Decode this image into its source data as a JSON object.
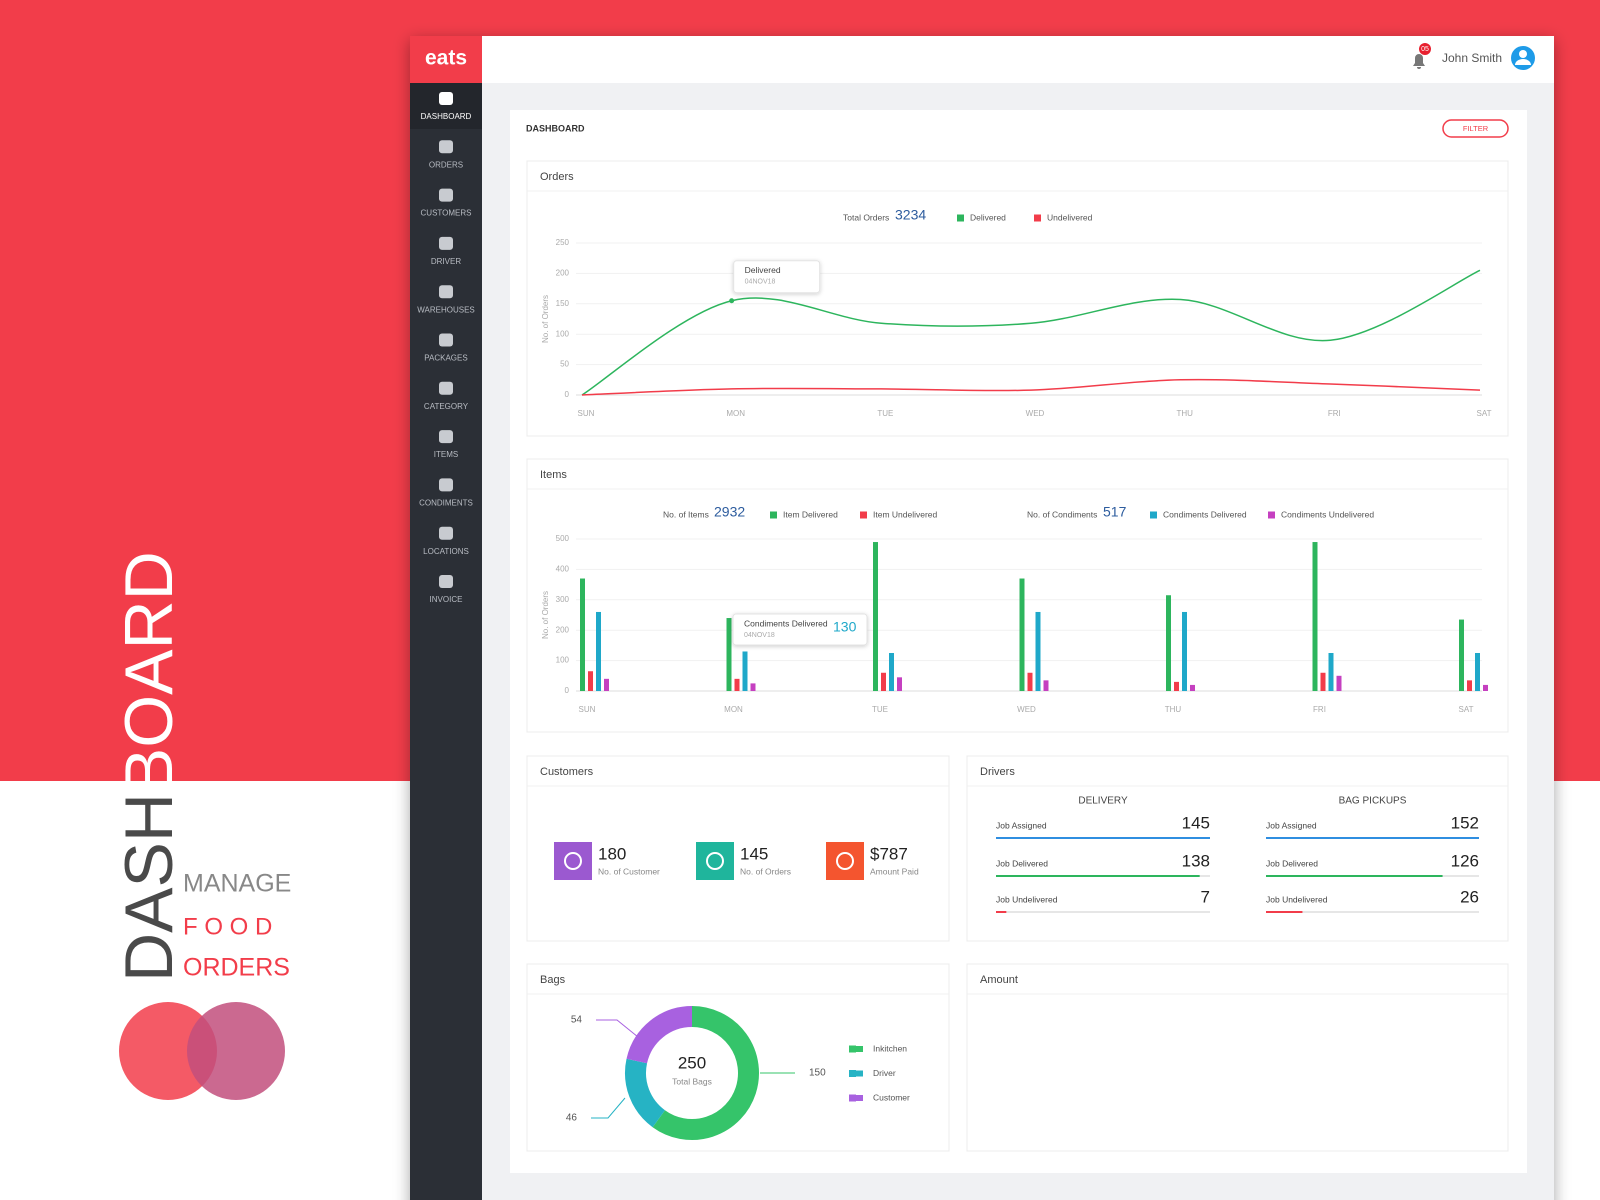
{
  "promo": {
    "title_a": "DASH",
    "title_b": "BOARD",
    "line1": "MANAGE",
    "line2": "F O O D",
    "line3": "ORDERS"
  },
  "app": {
    "logo": "eats",
    "notifications": "05",
    "user": "John Smith"
  },
  "nav": [
    "DASHBOARD",
    "ORDERS",
    "CUSTOMERS",
    "DRIVER",
    "WAREHOUSES",
    "PACKAGES",
    "CATEGORY",
    "ITEMS",
    "CONDIMENTS",
    "LOCATIONS",
    "INVOICE"
  ],
  "page": {
    "title": "DASHBOARD",
    "filter": "FILTER"
  },
  "orders": {
    "type": "line",
    "title": "Orders",
    "total_label": "Total Orders",
    "total": 3234,
    "y_label": "No. of Orders",
    "categories": [
      "SUN",
      "MON",
      "TUE",
      "WED",
      "THU",
      "FRI",
      "SAT"
    ],
    "ylim": [
      0,
      250
    ],
    "yticks": [
      0,
      50,
      100,
      150,
      200,
      250
    ],
    "grid": true,
    "series": [
      {
        "name": "Delivered",
        "color": "#2db55d",
        "values": [
          0,
          155,
          118,
          118,
          157,
          90,
          205
        ]
      },
      {
        "name": "Undelivered",
        "color": "#f23c4a",
        "values": [
          0,
          10,
          10,
          8,
          25,
          18,
          8
        ]
      }
    ],
    "tooltip": {
      "date": "04NOV18"
    }
  },
  "items": {
    "type": "bar",
    "title": "Items",
    "items_label": "No. of Items",
    "items_total": 2932,
    "condiments_label": "No. of Condiments",
    "condiments_total": 517,
    "y_label": "No. of Orders",
    "categories": [
      "SUN",
      "MON",
      "TUE",
      "WED",
      "THU",
      "FRI",
      "SAT"
    ],
    "ylim": [
      0,
      500
    ],
    "yticks": [
      0,
      100,
      200,
      300,
      400,
      500
    ],
    "grid": true,
    "series": [
      {
        "name": "Item Delivered",
        "color": "#2db55d",
        "values": [
          370,
          240,
          490,
          370,
          315,
          490,
          235
        ]
      },
      {
        "name": "Item Undelivered",
        "color": "#f23c4a",
        "values": [
          65,
          40,
          60,
          60,
          30,
          60,
          35
        ]
      },
      {
        "name": "Condiments Delivered",
        "color": "#1fa8c9",
        "values": [
          260,
          130,
          125,
          260,
          260,
          125,
          125
        ]
      },
      {
        "name": "Condiments Undelivered",
        "color": "#c540c0",
        "values": [
          40,
          25,
          45,
          35,
          20,
          50,
          20
        ]
      }
    ],
    "tooltip": {
      "date": "04NOV18"
    }
  },
  "customers": {
    "title": "Customers",
    "stats": [
      {
        "value": "180",
        "label": "No. of Customer",
        "color": "#9b59d0"
      },
      {
        "value": "145",
        "label": "No. of Orders",
        "color": "#1fb59c"
      },
      {
        "value": "$787",
        "label": "Amount Paid",
        "color": "#f4552f"
      }
    ]
  },
  "drivers": {
    "title": "Drivers",
    "groups": [
      {
        "title": "DELIVERY",
        "rows": [
          {
            "label": "Job Assigned",
            "value": 145,
            "color": "#2f8ee0"
          },
          {
            "label": "Job Delivered",
            "value": 138,
            "color": "#2db55d"
          },
          {
            "label": "Job Undelivered",
            "value": 7,
            "color": "#f23c4a"
          }
        ]
      },
      {
        "title": "BAG PICKUPS",
        "rows": [
          {
            "label": "Job Assigned",
            "value": 152,
            "color": "#2f8ee0"
          },
          {
            "label": "Job Delivered",
            "value": 126,
            "color": "#2db55d"
          },
          {
            "label": "Job Undelivered",
            "value": 26,
            "color": "#f23c4a"
          }
        ]
      }
    ]
  },
  "bags": {
    "type": "donut",
    "title": "Bags",
    "total": 250,
    "total_label": "Total Bags",
    "categories": [
      "Inkitchen",
      "Driver",
      "Customer"
    ],
    "values": [
      150,
      46,
      54
    ],
    "colors": [
      "#35c46a",
      "#26b3c4",
      "#a861e0"
    ]
  },
  "amount": {
    "title": "Amount"
  }
}
